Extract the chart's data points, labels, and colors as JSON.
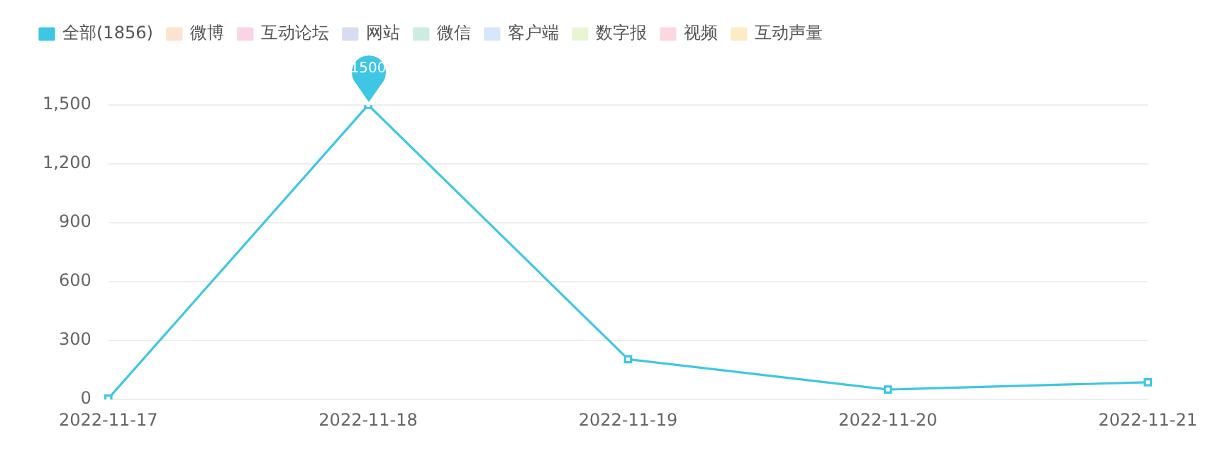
{
  "chart_data": {
    "type": "line",
    "categories": [
      "2022-11-17",
      "2022-11-18",
      "2022-11-19",
      "2022-11-20",
      "2022-11-21"
    ],
    "series": [
      {
        "name": "全部(1856)",
        "color": "#3fc6e4",
        "values": [
          5,
          1500,
          205,
          51,
          88
        ]
      },
      {
        "name": "微博",
        "color": "#fbe3cf",
        "values": [
          null,
          null,
          null,
          null,
          null
        ]
      },
      {
        "name": "互动论坛",
        "color": "#f9d3e6",
        "values": [
          null,
          null,
          null,
          null,
          null
        ]
      },
      {
        "name": "网站",
        "color": "#d8dcf0",
        "values": [
          null,
          null,
          null,
          null,
          null
        ]
      },
      {
        "name": "微信",
        "color": "#ccecdf",
        "values": [
          null,
          null,
          null,
          null,
          null
        ]
      },
      {
        "name": "客户端",
        "color": "#d6e6fb",
        "values": [
          null,
          null,
          null,
          null,
          null
        ]
      },
      {
        "name": "数字报",
        "color": "#e8f5d2",
        "values": [
          null,
          null,
          null,
          null,
          null
        ]
      },
      {
        "name": "视频",
        "color": "#fbd8df",
        "values": [
          null,
          null,
          null,
          null,
          null
        ]
      },
      {
        "name": "互动声量",
        "color": "#fcebc4",
        "values": [
          null,
          null,
          null,
          null,
          null
        ]
      }
    ],
    "ylim": [
      0,
      1500
    ],
    "yticks": [
      0,
      {
        "value": 300,
        "label": "300"
      },
      {
        "value": 600,
        "label": "600"
      },
      {
        "value": 900,
        "label": "900"
      },
      {
        "value": 1200,
        "label": "1,200"
      },
      {
        "value": 1500,
        "label": "1,500"
      }
    ],
    "grid": "y",
    "legend": "top left",
    "marker": "square",
    "line_style": "solid",
    "annotations": [
      {
        "text": "1500",
        "x": "2022-11-18",
        "y": 1500
      }
    ]
  }
}
